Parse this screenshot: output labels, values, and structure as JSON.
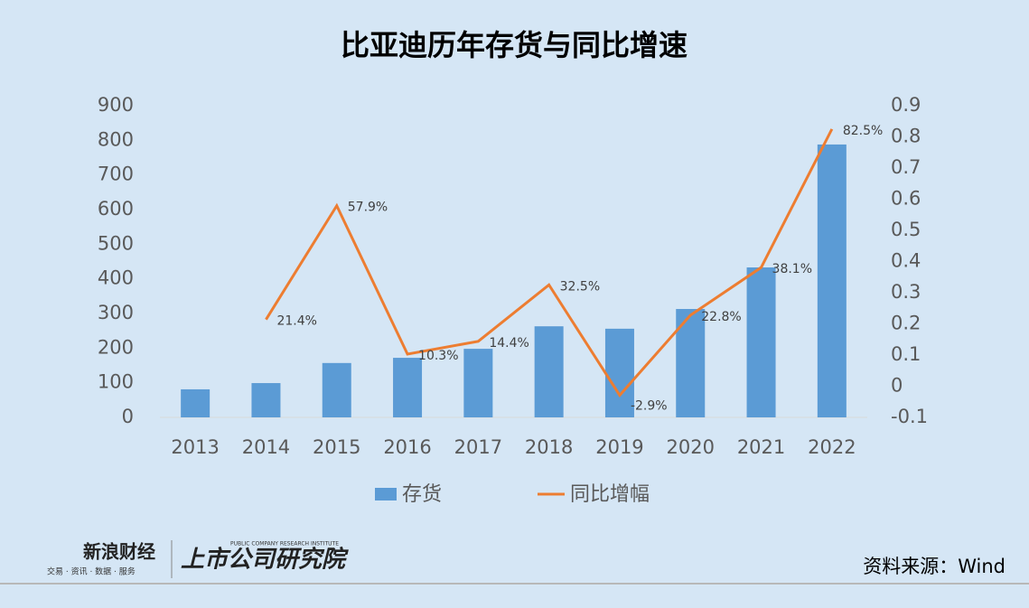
{
  "chart_data": {
    "type": "bar_line",
    "title": "比亚迪历年存货与同比增速",
    "categories": [
      "2013",
      "2014",
      "2015",
      "2016",
      "2017",
      "2018",
      "2019",
      "2020",
      "2021",
      "2022"
    ],
    "series": [
      {
        "name": "存货",
        "color": "#5b9bd5",
        "type": "bar",
        "values": [
          81,
          99,
          157,
          172,
          198,
          263,
          256,
          313,
          433,
          788
        ]
      },
      {
        "name": "同比增幅",
        "color": "#ed7d31",
        "type": "line",
        "axis": "y2",
        "values": [
          null,
          0.214,
          0.579,
          0.103,
          0.144,
          0.325,
          -0.029,
          0.228,
          0.381,
          0.825
        ],
        "value_labels": [
          null,
          "21.4%",
          "57.9%",
          "10.3%",
          "14.4%",
          "32.5%",
          "-2.9%",
          "22.8%",
          "38.1%",
          "82.5%"
        ]
      }
    ],
    "ylim": [
      0,
      900
    ],
    "yticks": [
      0,
      100,
      200,
      300,
      400,
      500,
      600,
      700,
      800,
      900
    ],
    "y2lim": [
      -0.1,
      0.9
    ],
    "y2ticks": [
      -0.1,
      0,
      0.1,
      0.2,
      0.3,
      0.4,
      0.5,
      0.6,
      0.7,
      0.8,
      0.9
    ],
    "legend": "bottom",
    "source": "资料来源：Wind",
    "logos": [
      "新浪财经",
      "交易 · 资讯 · 数据 · 服务",
      "上市公司研究院",
      "PUBLIC COMPANY RESEARCH INSTITUTE"
    ]
  }
}
